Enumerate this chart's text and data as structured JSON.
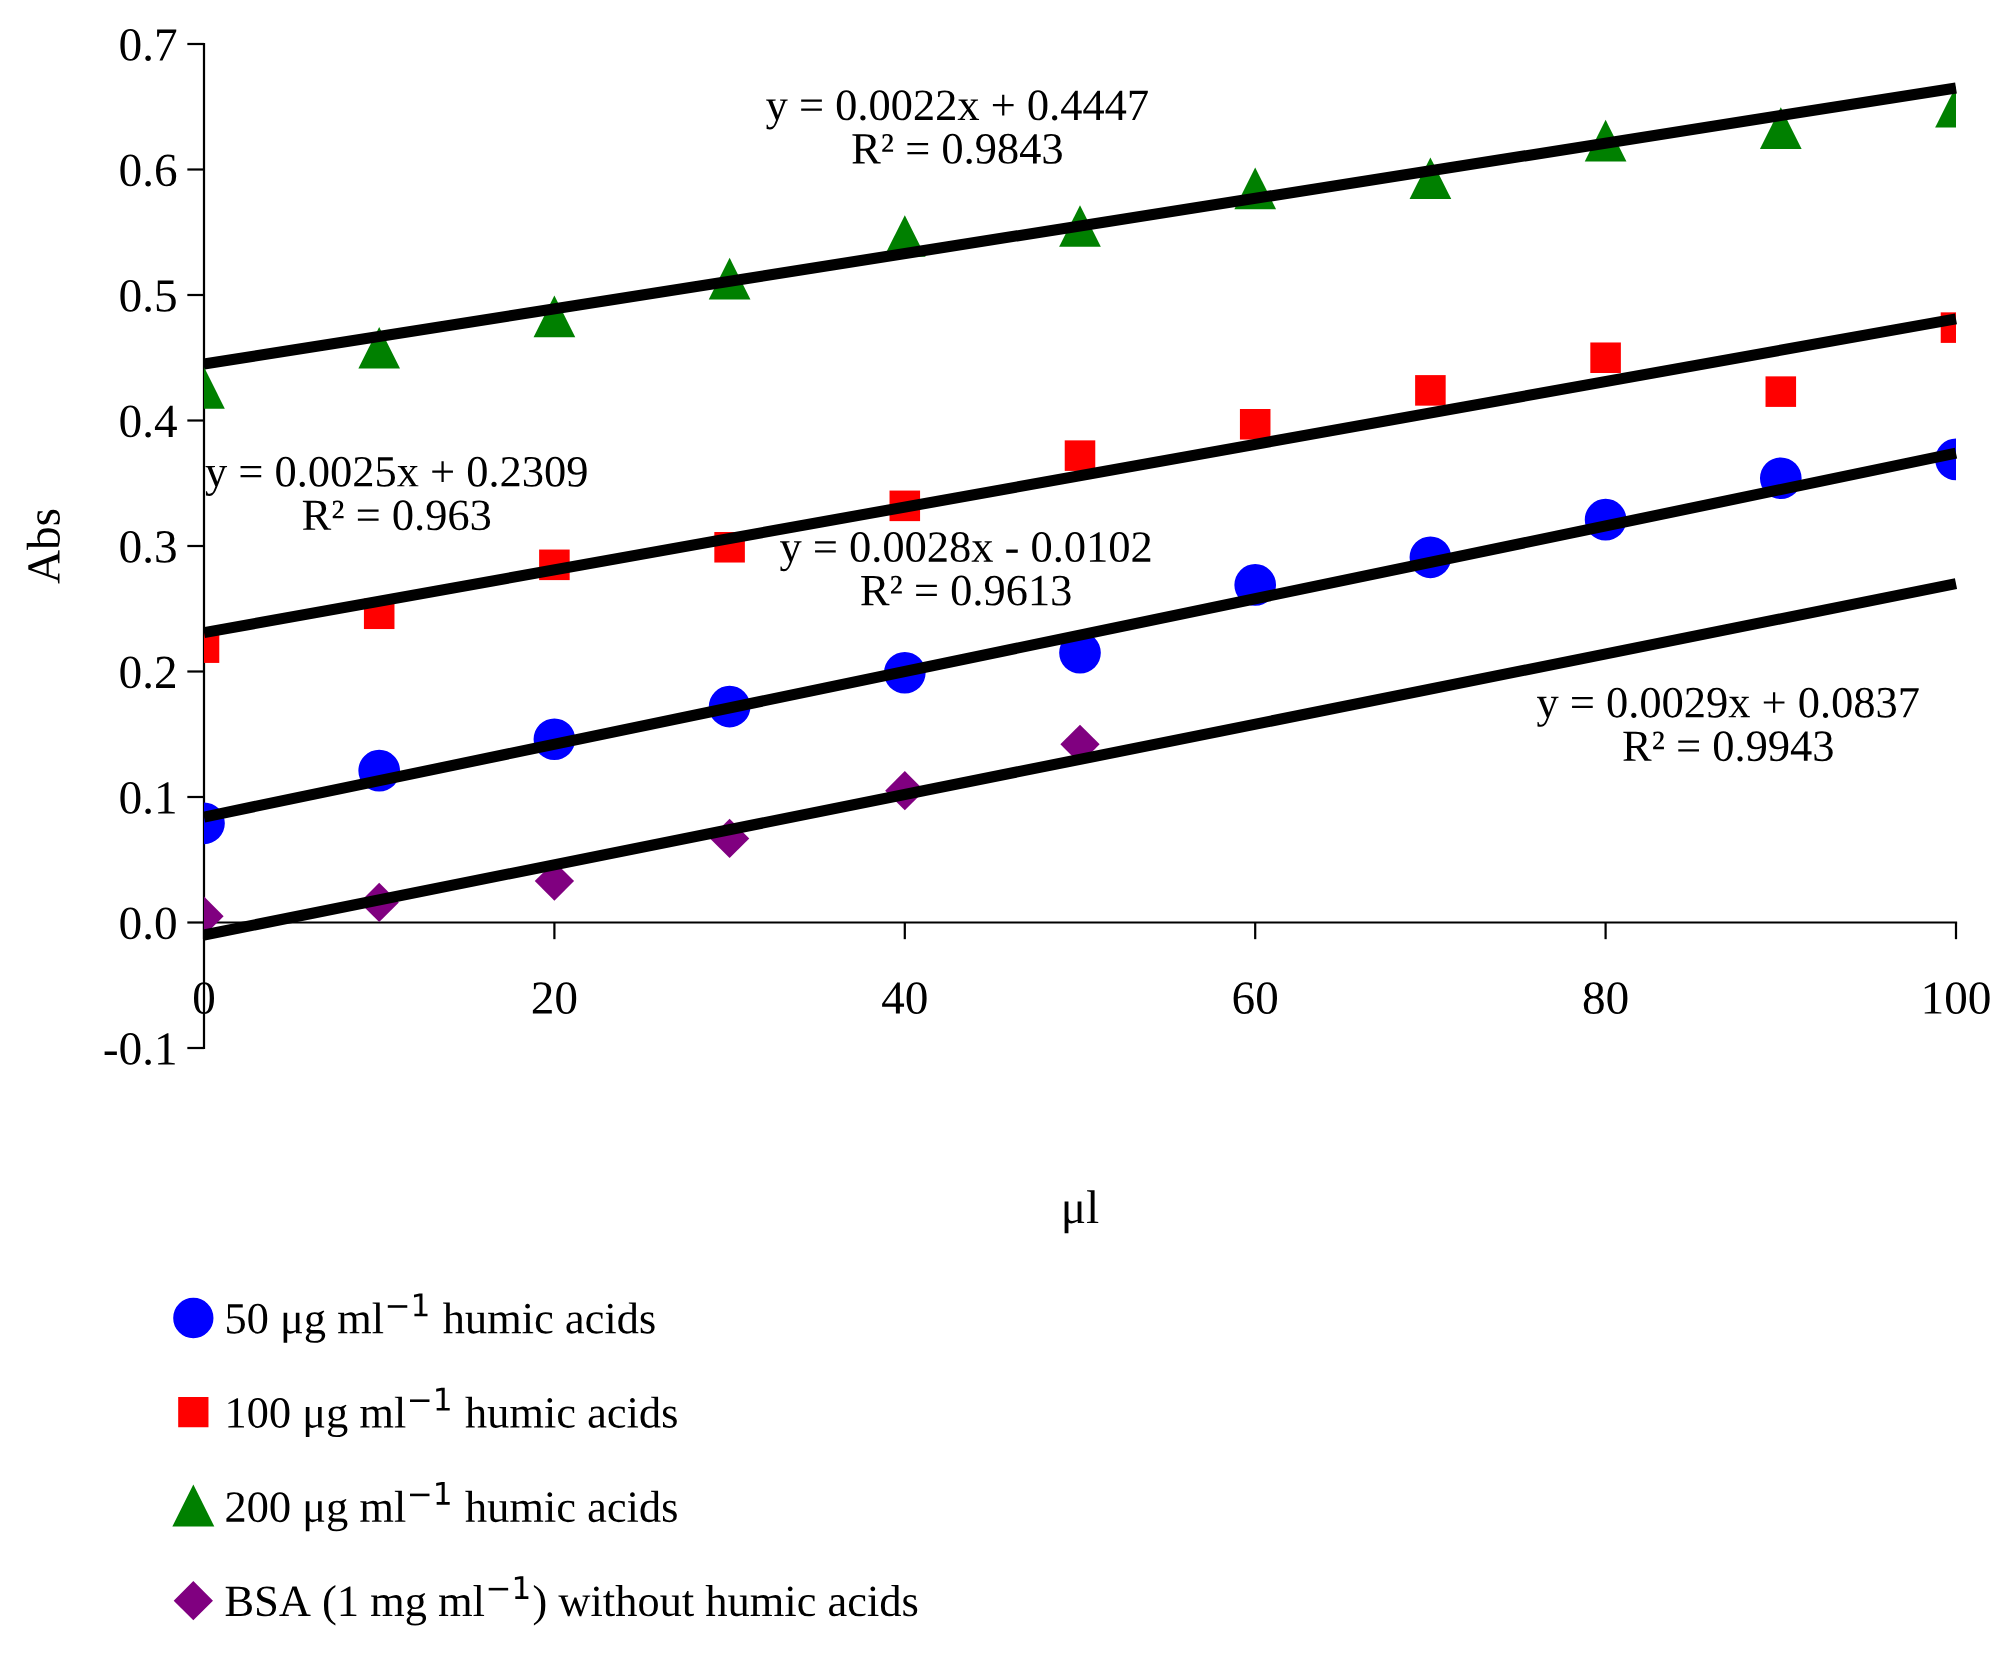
{
  "chart_data": {
    "type": "scatter",
    "xlabel": "μl",
    "ylabel": "Abs",
    "x": [
      0,
      10,
      20,
      30,
      40,
      50,
      60,
      70,
      80,
      90,
      100
    ],
    "xlim": [
      0,
      100
    ],
    "xticks": [
      0,
      20,
      40,
      60,
      80,
      100
    ],
    "ylim": [
      -0.1,
      0.7
    ],
    "yticks": [
      {
        "value": -0.1,
        "label": "-0.1"
      },
      {
        "value": 0,
        "label": "0.0"
      },
      0.1,
      0.2,
      0.3,
      0.4,
      0.5,
      0.6,
      0.7
    ],
    "grid": false,
    "legend": "bottom",
    "series": [
      {
        "name": "50 μg ml$^{−1}$ humic acids",
        "color": "#0000ff",
        "marker": "circle",
        "values": [
          0.079,
          0.121,
          0.146,
          0.172,
          0.199,
          0.215,
          0.269,
          0.291,
          0.321,
          0.354,
          0.369
        ]
      },
      {
        "name": "100 μg ml$^{−1}$ humic acids",
        "color": "#ff0000",
        "marker": "square",
        "values": [
          0.219,
          0.246,
          0.285,
          0.299,
          0.332,
          0.372,
          0.397,
          0.424,
          0.45,
          0.423,
          0.474
        ]
      },
      {
        "name": "200 μg ml$^{−1}$ humic acids",
        "color": "#008000",
        "marker": "triangle",
        "values": [
          0.426,
          0.458,
          0.483,
          0.513,
          0.547,
          0.555,
          0.585,
          0.593,
          0.623,
          0.633,
          0.65
        ]
      },
      {
        "name": "BSA (1 mg ml$^{−1}$) without humic acids",
        "color": "#800080",
        "marker": "diamond",
        "values": [
          0.005,
          0.016,
          0.033,
          0.067,
          0.105,
          0.142,
          null,
          null,
          null,
          null,
          null
        ]
      },
      {
        "type": "line",
        "color": "#000000",
        "values": [
          0.445,
          null,
          null,
          null,
          null,
          null,
          null,
          null,
          null,
          null,
          0.665
        ]
      },
      {
        "type": "line",
        "color": "#000000",
        "values": [
          0.231,
          null,
          null,
          null,
          null,
          null,
          null,
          null,
          null,
          null,
          0.481
        ]
      },
      {
        "type": "line",
        "color": "#000000",
        "values": [
          0.084,
          null,
          null,
          null,
          null,
          null,
          null,
          null,
          null,
          null,
          0.374
        ]
      },
      {
        "type": "line",
        "color": "#000000",
        "values": [
          -0.01,
          null,
          null,
          null,
          null,
          null,
          null,
          null,
          null,
          null,
          0.27
        ]
      }
    ],
    "annotations": [
      "y = 0.0022x + 0.4447\nR² = 0.9843",
      "y = 0.0025x + 0.2309\nR² = 0.963",
      "y = 0.0028x - 0.0102\nR² = 0.9613",
      "y = 0.0029x + 0.0837\nR² = 0.9943"
    ]
  }
}
